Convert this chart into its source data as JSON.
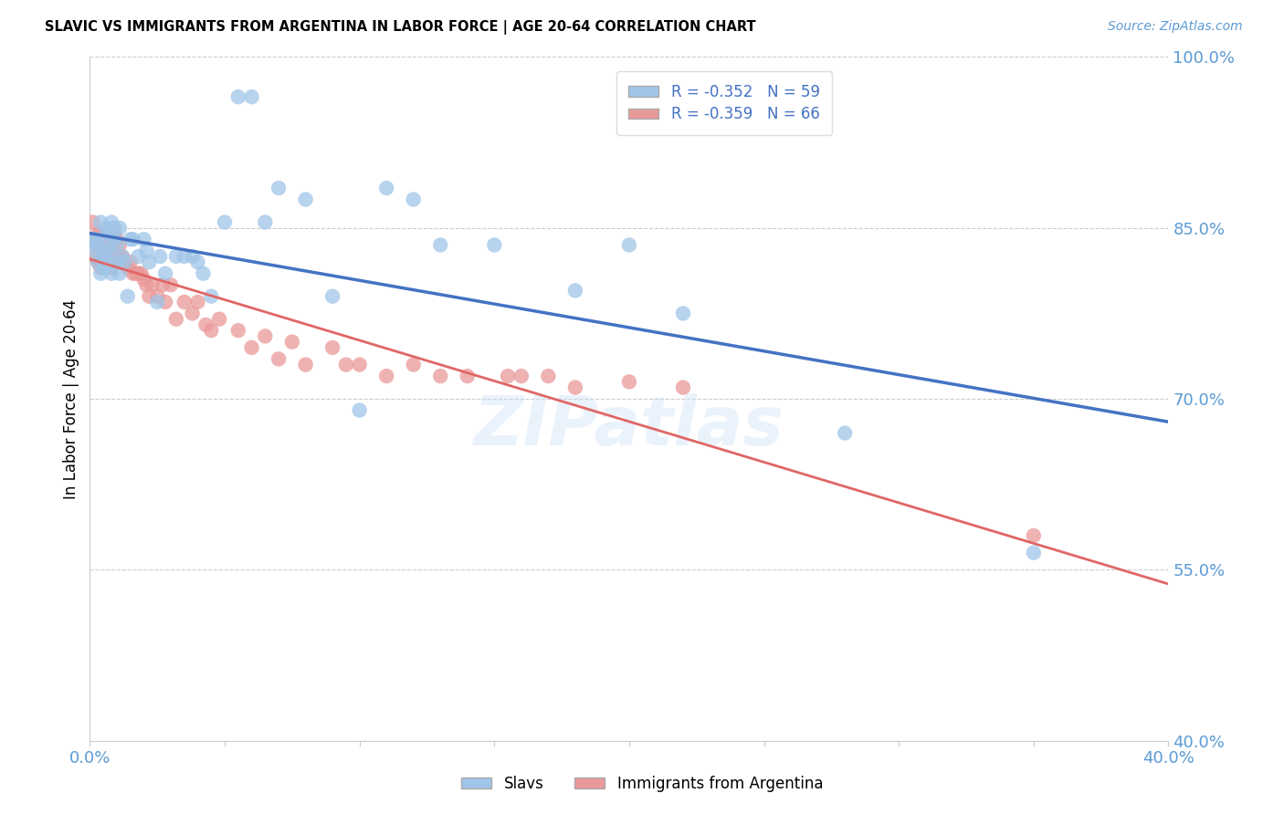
{
  "title": "SLAVIC VS IMMIGRANTS FROM ARGENTINA IN LABOR FORCE | AGE 20-64 CORRELATION CHART",
  "source": "Source: ZipAtlas.com",
  "ylabel": "In Labor Force | Age 20-64",
  "xlim": [
    0.0,
    0.4
  ],
  "ylim": [
    0.4,
    1.0
  ],
  "slavs_color": "#9fc5e8",
  "argentina_color": "#ea9999",
  "slavs_line_color": "#4472c4",
  "argentina_line_color": "#e06666",
  "slavs_R": -0.352,
  "slavs_N": 59,
  "argentina_R": -0.359,
  "argentina_N": 66,
  "watermark": "ZIPatlas",
  "grid_color": "#cccccc",
  "slavs_x": [
    0.001,
    0.002,
    0.002,
    0.003,
    0.003,
    0.004,
    0.004,
    0.005,
    0.005,
    0.005,
    0.006,
    0.006,
    0.006,
    0.007,
    0.007,
    0.007,
    0.008,
    0.008,
    0.009,
    0.009,
    0.01,
    0.01,
    0.011,
    0.011,
    0.012,
    0.013,
    0.014,
    0.015,
    0.016,
    0.018,
    0.02,
    0.021,
    0.022,
    0.025,
    0.026,
    0.028,
    0.032,
    0.035,
    0.038,
    0.04,
    0.042,
    0.045,
    0.05,
    0.055,
    0.06,
    0.065,
    0.07,
    0.08,
    0.09,
    0.1,
    0.11,
    0.12,
    0.13,
    0.15,
    0.18,
    0.2,
    0.22,
    0.28,
    0.35
  ],
  "slavs_y": [
    0.84,
    0.84,
    0.83,
    0.835,
    0.82,
    0.855,
    0.81,
    0.84,
    0.825,
    0.815,
    0.85,
    0.83,
    0.815,
    0.845,
    0.83,
    0.82,
    0.855,
    0.81,
    0.85,
    0.84,
    0.835,
    0.82,
    0.85,
    0.81,
    0.825,
    0.82,
    0.79,
    0.84,
    0.84,
    0.825,
    0.84,
    0.83,
    0.82,
    0.785,
    0.825,
    0.81,
    0.825,
    0.825,
    0.825,
    0.82,
    0.81,
    0.79,
    0.855,
    0.965,
    0.965,
    0.855,
    0.885,
    0.875,
    0.79,
    0.69,
    0.885,
    0.875,
    0.835,
    0.835,
    0.795,
    0.835,
    0.775,
    0.67,
    0.565
  ],
  "argentina_x": [
    0.001,
    0.001,
    0.002,
    0.002,
    0.003,
    0.003,
    0.003,
    0.004,
    0.004,
    0.005,
    0.005,
    0.006,
    0.006,
    0.007,
    0.007,
    0.007,
    0.008,
    0.008,
    0.009,
    0.009,
    0.01,
    0.01,
    0.011,
    0.012,
    0.013,
    0.014,
    0.015,
    0.016,
    0.017,
    0.018,
    0.019,
    0.02,
    0.021,
    0.022,
    0.023,
    0.025,
    0.027,
    0.028,
    0.03,
    0.032,
    0.035,
    0.038,
    0.04,
    0.043,
    0.045,
    0.048,
    0.055,
    0.06,
    0.065,
    0.07,
    0.075,
    0.08,
    0.09,
    0.095,
    0.1,
    0.11,
    0.12,
    0.13,
    0.14,
    0.155,
    0.16,
    0.17,
    0.18,
    0.2,
    0.22,
    0.35
  ],
  "argentina_y": [
    0.84,
    0.855,
    0.84,
    0.825,
    0.845,
    0.835,
    0.82,
    0.845,
    0.815,
    0.84,
    0.825,
    0.84,
    0.82,
    0.84,
    0.83,
    0.82,
    0.84,
    0.815,
    0.845,
    0.82,
    0.84,
    0.825,
    0.835,
    0.825,
    0.82,
    0.815,
    0.82,
    0.81,
    0.81,
    0.81,
    0.81,
    0.805,
    0.8,
    0.79,
    0.8,
    0.79,
    0.8,
    0.785,
    0.8,
    0.77,
    0.785,
    0.775,
    0.785,
    0.765,
    0.76,
    0.77,
    0.76,
    0.745,
    0.755,
    0.735,
    0.75,
    0.73,
    0.745,
    0.73,
    0.73,
    0.72,
    0.73,
    0.72,
    0.72,
    0.72,
    0.72,
    0.72,
    0.71,
    0.715,
    0.71,
    0.58
  ]
}
